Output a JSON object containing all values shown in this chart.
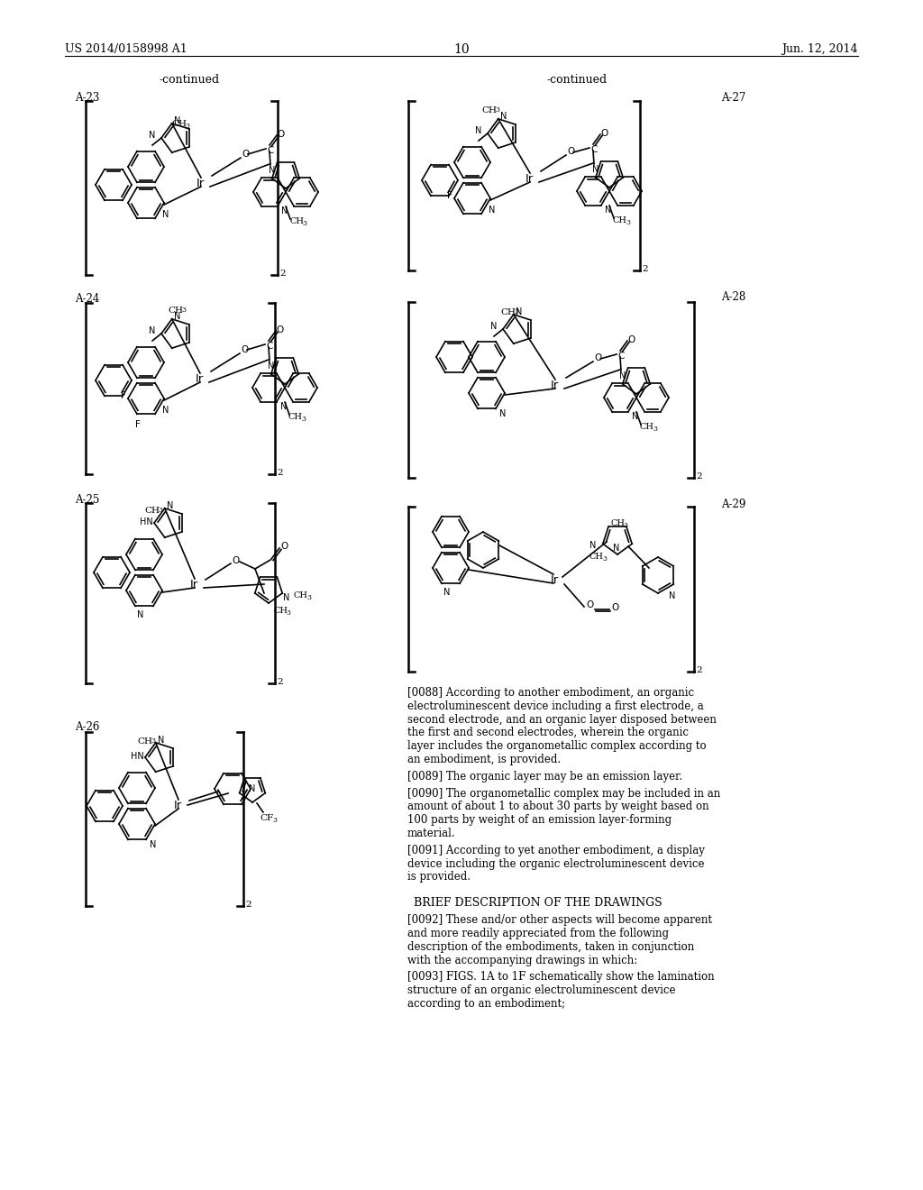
{
  "bg_color": "#ffffff",
  "header_left": "US 2014/0158998 A1",
  "header_right": "Jun. 12, 2014",
  "page_number": "10",
  "continued_left": "-continued",
  "continued_right": "-continued",
  "labels": [
    "A-23",
    "A-24",
    "A-25",
    "A-26",
    "A-27",
    "A-28",
    "A-29"
  ],
  "paragraph_0088_bold": "[0088]",
  "paragraph_0088_text": "According to another embodiment, an organic electroluminescent device including a first electrode, a second electrode, and an organic layer disposed between the first and second electrodes, wherein the organic layer includes the organometallic complex according to an embodiment, is provided.",
  "paragraph_0089_bold": "[0089]",
  "paragraph_0089_text": "The organic layer may be an emission layer.",
  "paragraph_0090_bold": "[0090]",
  "paragraph_0090_text": "The organometallic complex may be included in an amount of about 1 to about 30 parts by weight based on 100 parts by weight of an emission layer-forming material.",
  "paragraph_0091_bold": "[0091]",
  "paragraph_0091_text": "According to yet another embodiment, a display device including the organic electroluminescent device is provided.",
  "section_title": "BRIEF DESCRIPTION OF THE DRAWINGS",
  "paragraph_0092_bold": "[0092]",
  "paragraph_0092_text": "These and/or other aspects will become apparent and more readily appreciated from the following description of the embodiments, taken in conjunction with the accompanying drawings in which:",
  "paragraph_0093_bold": "[0093]",
  "paragraph_0093_text": "FIGS. 1A to 1F schematically show the lamination structure of an organic electroluminescent device according to an embodiment;"
}
